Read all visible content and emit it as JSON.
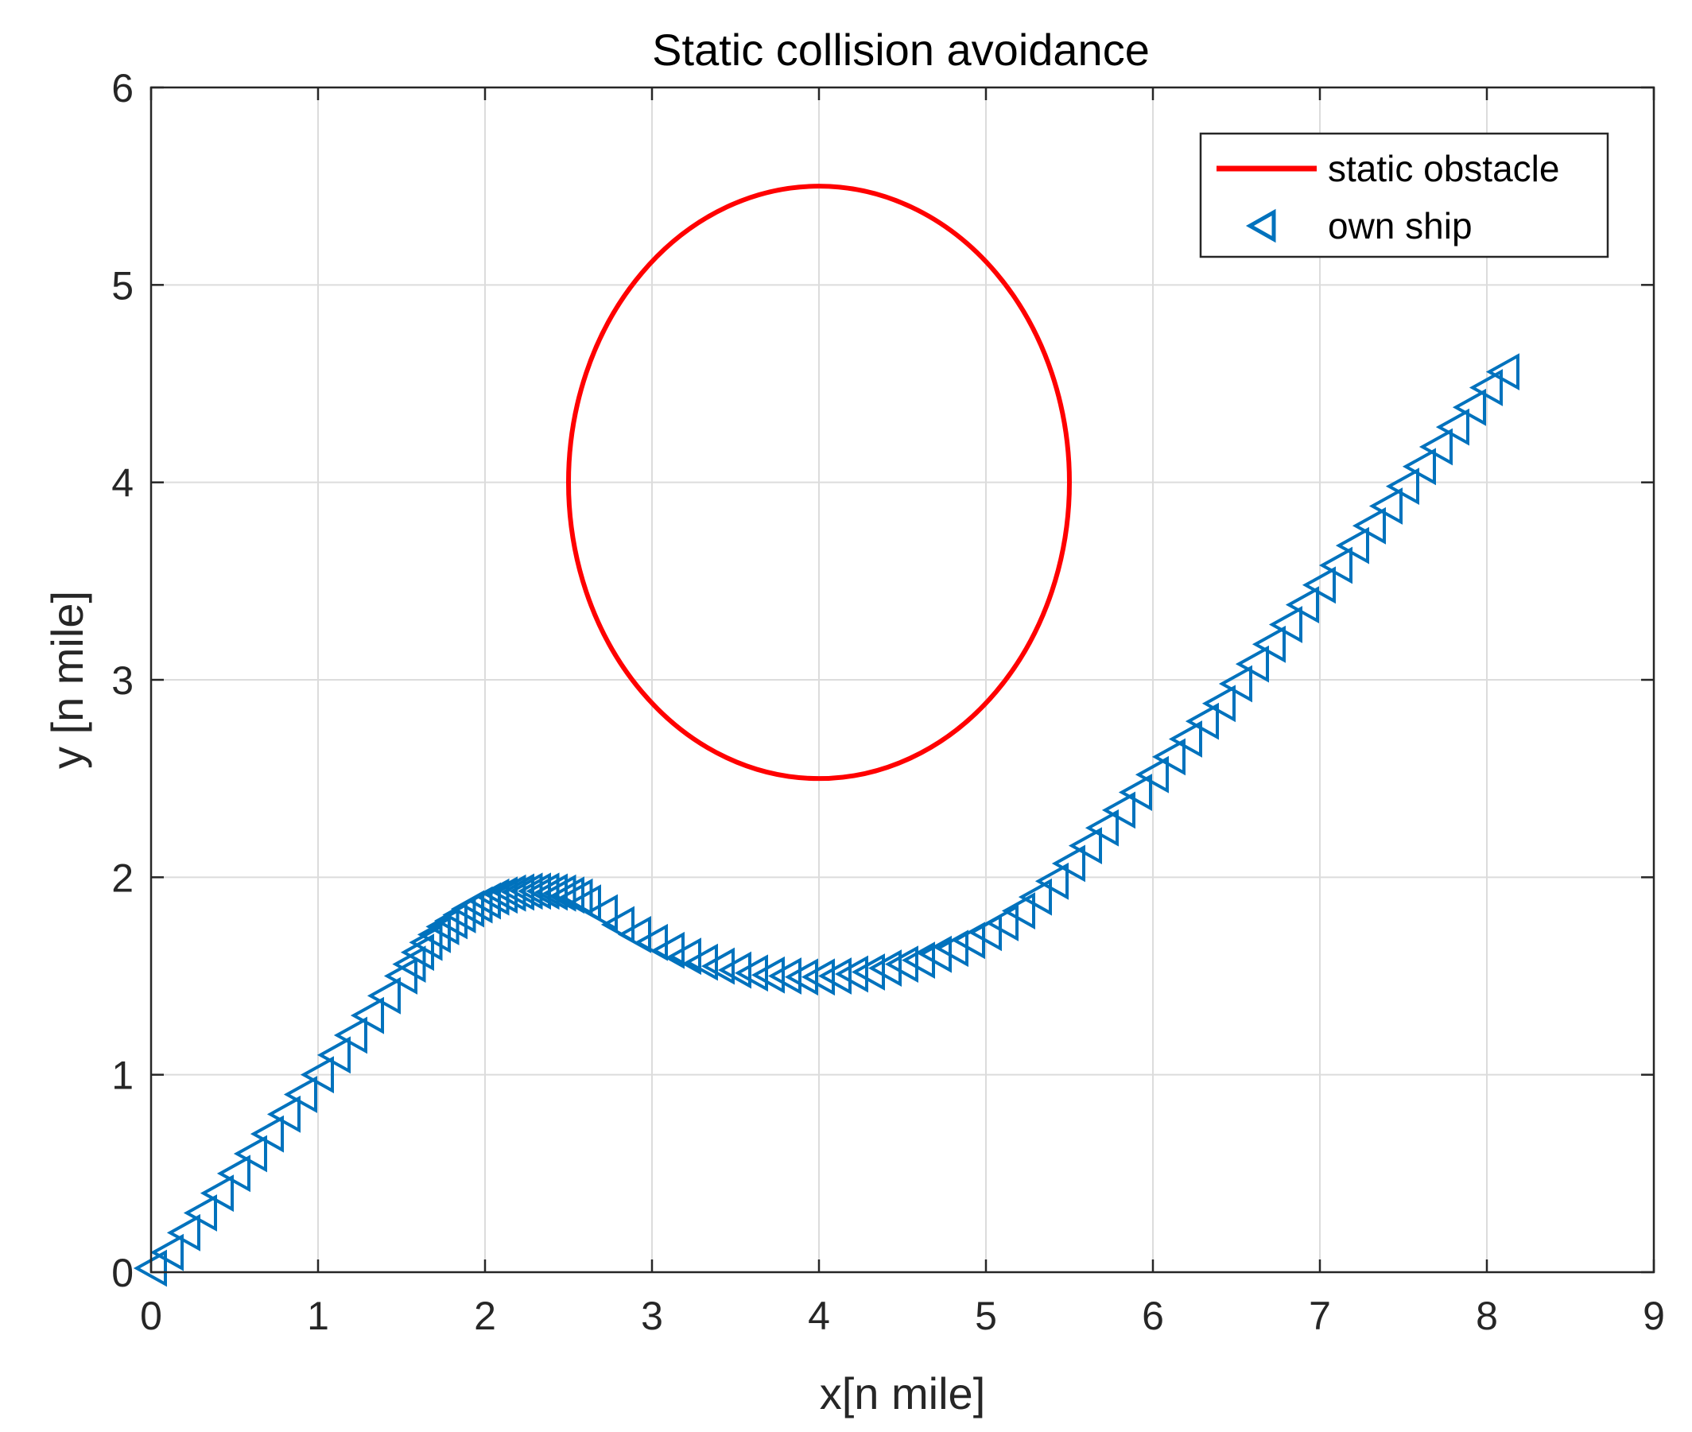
{
  "chart_data": {
    "type": "scatter",
    "title": "Static collision avoidance",
    "xlabel": "x[n mile]",
    "ylabel": "y [n mile]",
    "xlim": [
      0,
      9
    ],
    "ylim": [
      0,
      6
    ],
    "xticks": [
      0,
      1,
      2,
      3,
      4,
      5,
      6,
      7,
      8,
      9
    ],
    "yticks": [
      0,
      1,
      2,
      3,
      4,
      5,
      6
    ],
    "grid": true,
    "legend_position": "top-right",
    "colors": {
      "obstacle": "#ff0000",
      "ship": "#0072bd"
    },
    "series": [
      {
        "name": "static obstacle",
        "kind": "line",
        "shape": "circle",
        "center": [
          4,
          4
        ],
        "radius": 1.5
      },
      {
        "name": "own ship",
        "kind": "marker",
        "marker": "triangle-left",
        "x": [
          0,
          0.1,
          0.2,
          0.3,
          0.4,
          0.5,
          0.6,
          0.7,
          0.8,
          0.9,
          1.0,
          1.1,
          1.2,
          1.3,
          1.4,
          1.5,
          1.55,
          1.6,
          1.65,
          1.7,
          1.75,
          1.8,
          1.85,
          1.9,
          1.95,
          2.0,
          2.05,
          2.1,
          2.15,
          2.2,
          2.25,
          2.3,
          2.35,
          2.4,
          2.45,
          2.5,
          2.55,
          2.6,
          2.7,
          2.8,
          2.9,
          3.0,
          3.1,
          3.2,
          3.3,
          3.4,
          3.5,
          3.6,
          3.7,
          3.8,
          3.9,
          4.0,
          4.1,
          4.2,
          4.3,
          4.4,
          4.5,
          4.6,
          4.7,
          4.8,
          4.9,
          5.0,
          5.1,
          5.2,
          5.3,
          5.4,
          5.5,
          5.6,
          5.7,
          5.8,
          5.9,
          6.0,
          6.1,
          6.2,
          6.3,
          6.4,
          6.5,
          6.6,
          6.7,
          6.8,
          6.9,
          7.0,
          7.1,
          7.2,
          7.3,
          7.4,
          7.5,
          7.6,
          7.7,
          7.8,
          7.9,
          8.0,
          8.1
        ],
        "y": [
          0.02,
          0.1,
          0.2,
          0.3,
          0.4,
          0.5,
          0.6,
          0.7,
          0.8,
          0.9,
          1.0,
          1.1,
          1.2,
          1.3,
          1.4,
          1.5,
          1.56,
          1.62,
          1.67,
          1.71,
          1.75,
          1.78,
          1.81,
          1.84,
          1.86,
          1.88,
          1.9,
          1.91,
          1.92,
          1.925,
          1.93,
          1.93,
          1.93,
          1.925,
          1.92,
          1.91,
          1.9,
          1.87,
          1.82,
          1.76,
          1.71,
          1.67,
          1.63,
          1.6,
          1.57,
          1.55,
          1.53,
          1.515,
          1.505,
          1.5,
          1.495,
          1.495,
          1.5,
          1.51,
          1.52,
          1.54,
          1.56,
          1.58,
          1.61,
          1.64,
          1.68,
          1.72,
          1.77,
          1.83,
          1.9,
          1.98,
          2.07,
          2.16,
          2.25,
          2.34,
          2.43,
          2.52,
          2.61,
          2.7,
          2.79,
          2.88,
          2.98,
          3.08,
          3.18,
          3.28,
          3.38,
          3.48,
          3.58,
          3.68,
          3.78,
          3.88,
          3.98,
          4.08,
          4.18,
          4.28,
          4.38,
          4.48,
          4.56
        ]
      }
    ]
  }
}
